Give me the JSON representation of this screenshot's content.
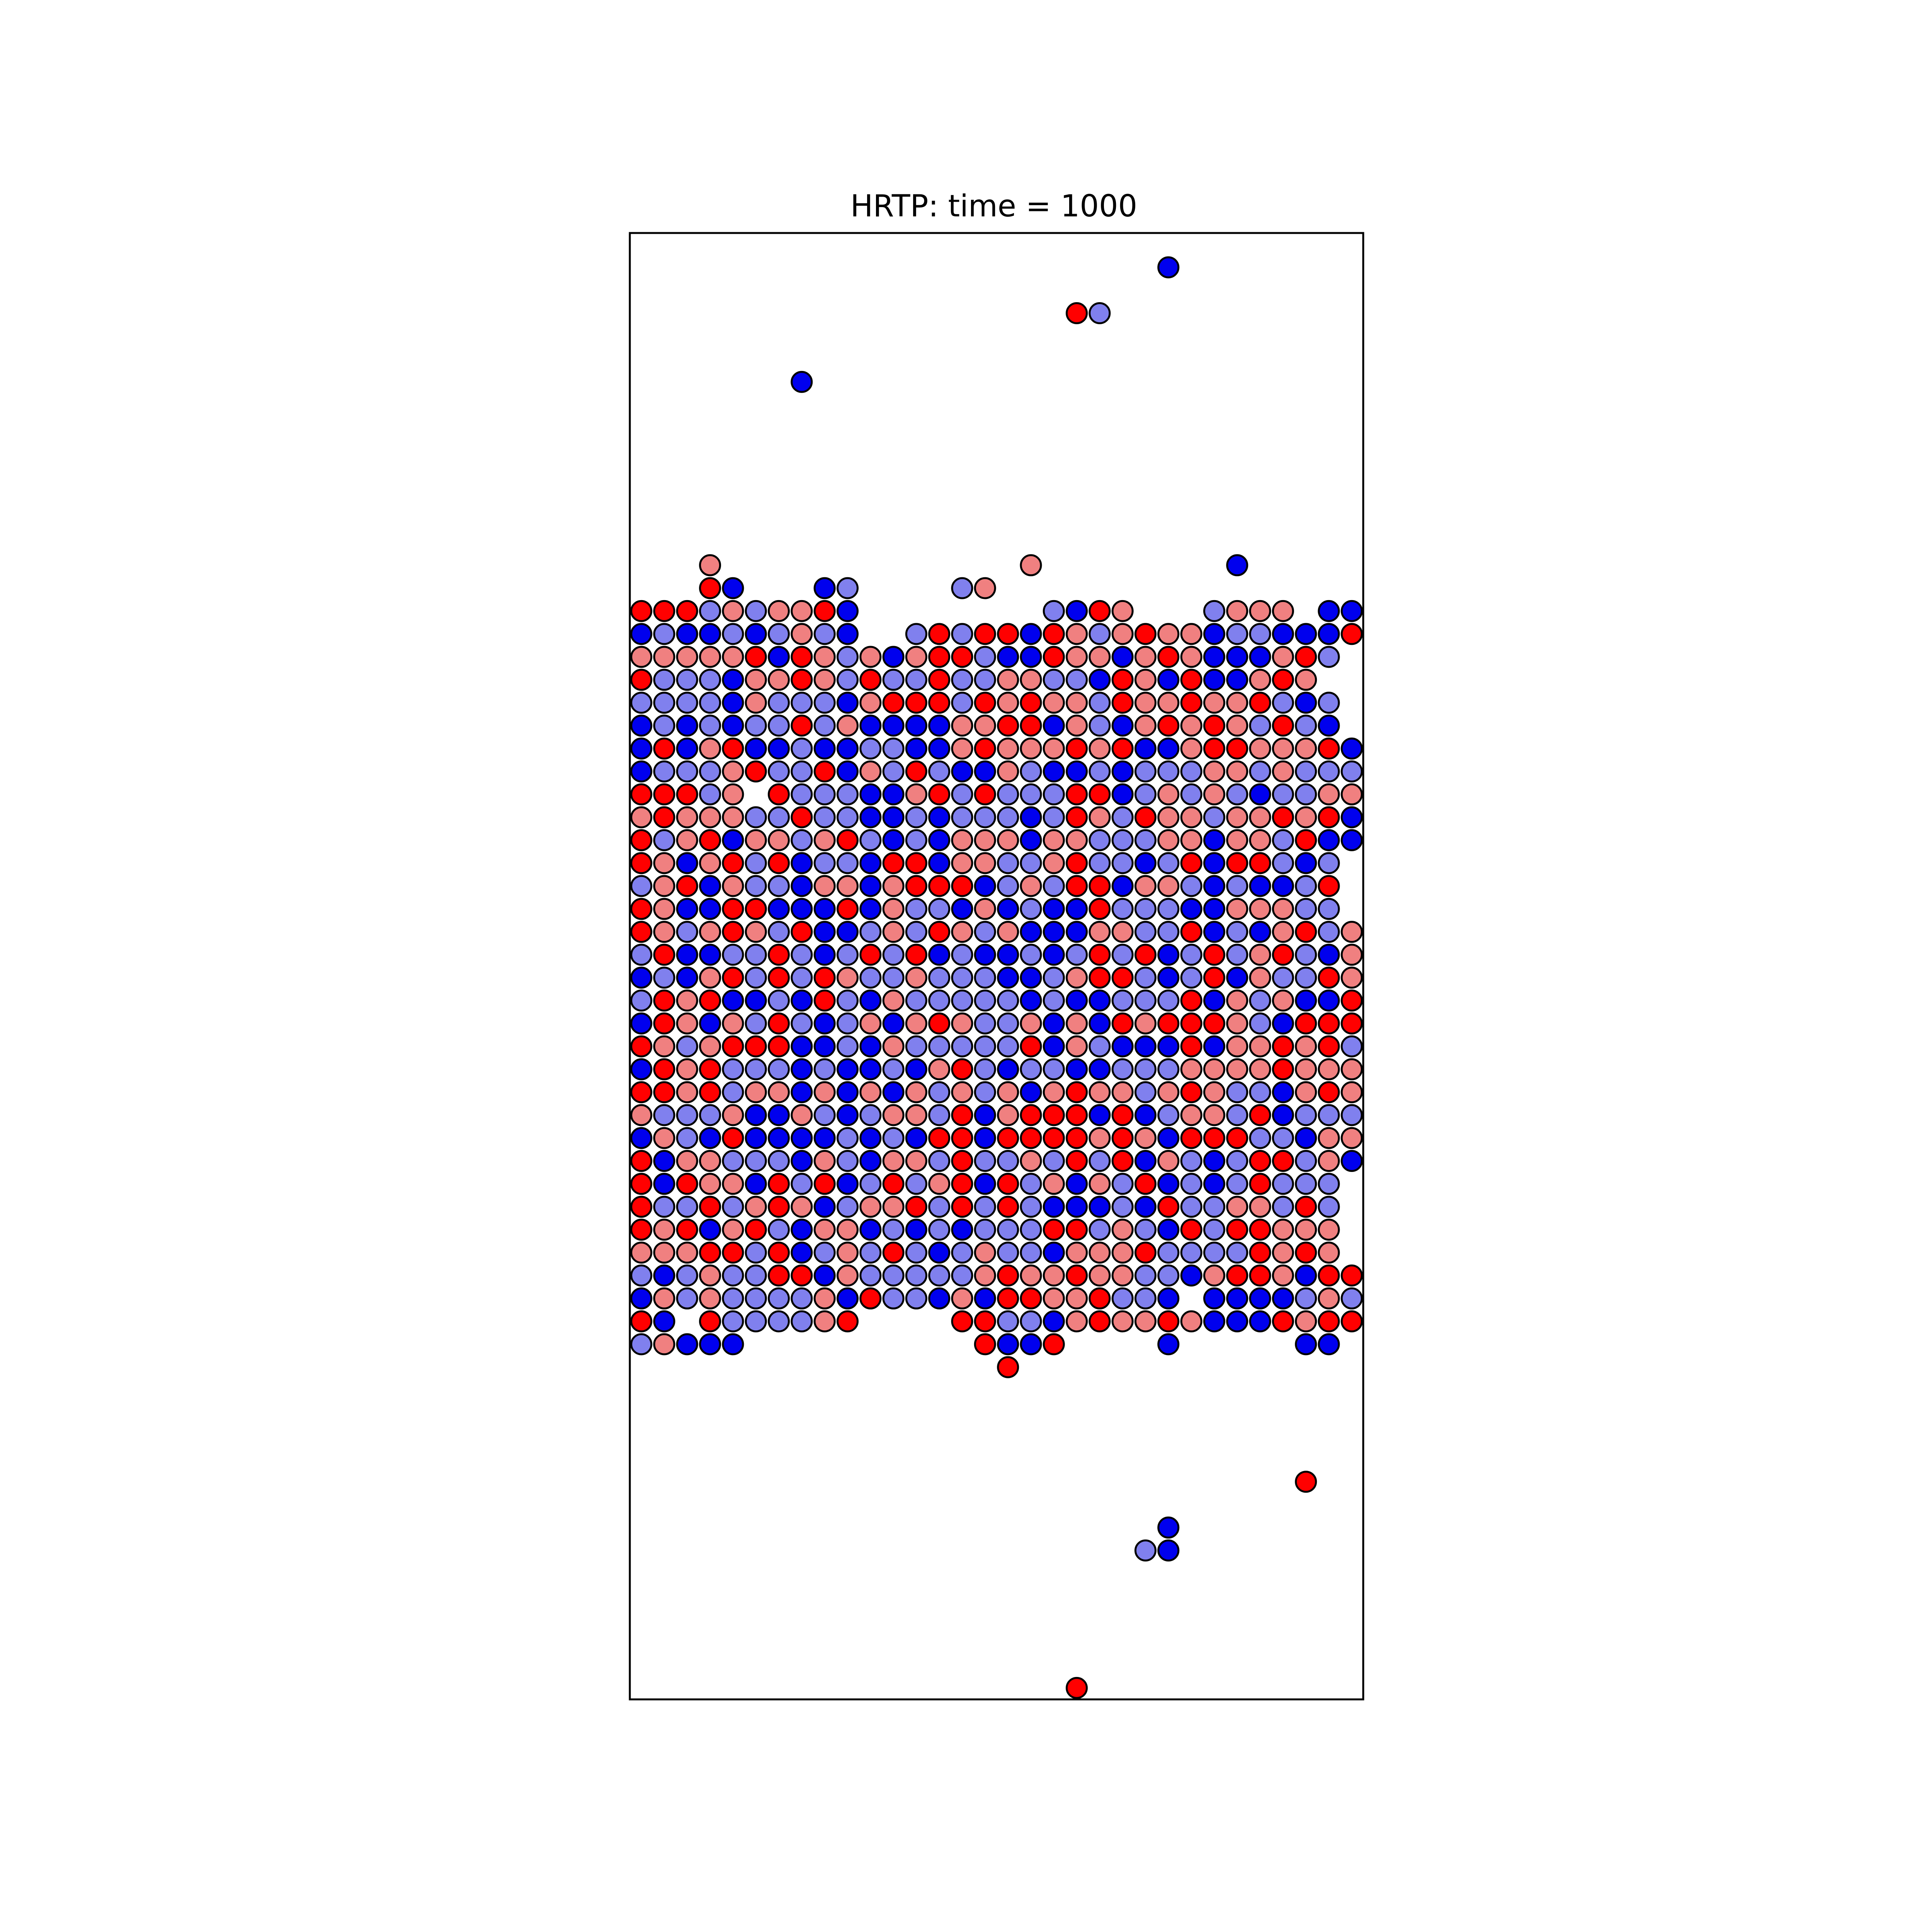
{
  "chart_data": {
    "type": "scatter",
    "title": "HRTP: time = 1000",
    "xlabel": "",
    "ylabel": "",
    "axes_ticks": false,
    "grid": false,
    "xlim": [
      0,
      32
    ],
    "ylim": [
      0,
      64
    ],
    "colors": {
      "red": "#ff0000",
      "light-red": "#f08080",
      "blue": "#0000ee",
      "light-blue": "#8080ee",
      "edge": "#000000"
    },
    "lattice": {
      "x0": 0.5,
      "y0_top": 47.5,
      "row_step": 1,
      "col_step": 1,
      "legend_chars": {
        "R": "red",
        "r": "light-red",
        "B": "blue",
        "b": "light-blue",
        ".": "empty"
      },
      "rows": [
        "RRRbrbrrRB........bBRr...brrr.BBb",
        "BbBBbBbrbB..bRbRRBRrbrRrrBbbBBBR",
        "rrrrrRBRrbrBrRRbBBRrrBrRrBBBrRb",
        "RbbbBrrRrbRbbRbbrrbbBRrBRBBrRr",
        "bbbbBrbbbBrRRRbRrRrrbRrrRrrRbBb",
        "BbBbBbbRbrBBBBrrRRBrbBrRrRrbRbB",
        "BRBrRBBbBBbbBBrRrrrRrRBBrRRrrrRB",
        "BbbbrRbbRBrbRbBBrbBBbBbbbrrbrbbb",
        "RRRbr.RbbbBBrRbRbbbRRBbrbrbBbbrr",
        "rRrrrbbRbbBBbBbbbBbRrbRrrbrrRrRB",
        "RbrRBrrbrRbBbBrrrBrrbbbrrBrrbRBB",
        "RrBrRbRBbbBRRBrrbbrRbbBbRBRRbBb",
        "brRBrbbBrrBrRRRBbrbRRBrrbBbBBbR",
        "RrBBRRBBBRBrbbBrBbBBRbbbBBrrrbb",
        "RrbrRrbRBBbrbRrbrBBBrrbbRBbBrRbr",
        "bRBBbbRbBbRbRBbBBbBbRbRBbRbrRbBr",
        "BbBrRbRbRrbbrbbbBBbrRRbBbRBrbbRr",
        "bRrRBBbBRbBrbbbbbBbBBbbbRBrbrBBR",
        "BRrBrbRbBbrBrRrbbrBrBRrRRRrbBRRR",
        "RrbrRRRBBbBrbbbbbRBrbBBBRBrrRrRb",
        "BRrRbbbBbBBbBrRbBbbBBbbbrrrrRrrr",
        "RRrRbrrBrBrBrbrbrBrRrrbrRrbbBrRr",
        "rbbbrBBrbBbrrbRBrRRRBRBbrrbRBbbb",
        "BrbBRBBBBbBbBRRBRRRRrRrBRRRbbBrr",
        "RBrrbbbBrbBrrbRbbrbRbRBrbBbRRbrB",
        "RBRrrBRbRBbRbrRBRbrBrbRBbBbRbbb",
        "RbbRbrRrBbrrRbRbRbBBBbBRbbrrbRb",
        "RrRBrRbBrrBbBbBbbbRRbrbBRbRRrrr",
        "rrrRRbRBbrbRbBbrbbBrrrRbbbbRrRr",
        "bBbrbbRRBrbbbbbrRrrRrrbbBrRRrBRR",
        "BrbrbbbbrBRbbBrBRRrrRbbB.BBBBbrb",
        "RB.RbbbbrR....RRbbBrRrrRrBBBRrRR",
        "brBBB..........RBBR....B.....BB"
      ]
    },
    "points": [
      {
        "x": 23.5,
        "y": 62.5,
        "c": "blue"
      },
      {
        "x": 19.5,
        "y": 60.5,
        "c": "red"
      },
      {
        "x": 20.5,
        "y": 60.5,
        "c": "light-blue"
      },
      {
        "x": 7.5,
        "y": 57.5,
        "c": "blue"
      },
      {
        "x": 3.5,
        "y": 49.5,
        "c": "light-red"
      },
      {
        "x": 3.5,
        "y": 48.5,
        "c": "red"
      },
      {
        "x": 4.5,
        "y": 48.5,
        "c": "blue"
      },
      {
        "x": 8.5,
        "y": 48.5,
        "c": "blue"
      },
      {
        "x": 9.5,
        "y": 48.5,
        "c": "light-blue"
      },
      {
        "x": 14.5,
        "y": 48.5,
        "c": "light-blue"
      },
      {
        "x": 15.5,
        "y": 48.5,
        "c": "light-red"
      },
      {
        "x": 17.5,
        "y": 49.5,
        "c": "light-red"
      },
      {
        "x": 26.5,
        "y": 49.5,
        "c": "blue"
      },
      {
        "x": 16.5,
        "y": 14.5,
        "c": "red"
      },
      {
        "x": 29.5,
        "y": 9.5,
        "c": "red"
      },
      {
        "x": 23.5,
        "y": 7.5,
        "c": "blue"
      },
      {
        "x": 22.5,
        "y": 6.5,
        "c": "light-blue"
      },
      {
        "x": 23.5,
        "y": 6.5,
        "c": "blue"
      },
      {
        "x": 19.5,
        "y": 0.5,
        "c": "red"
      }
    ]
  }
}
